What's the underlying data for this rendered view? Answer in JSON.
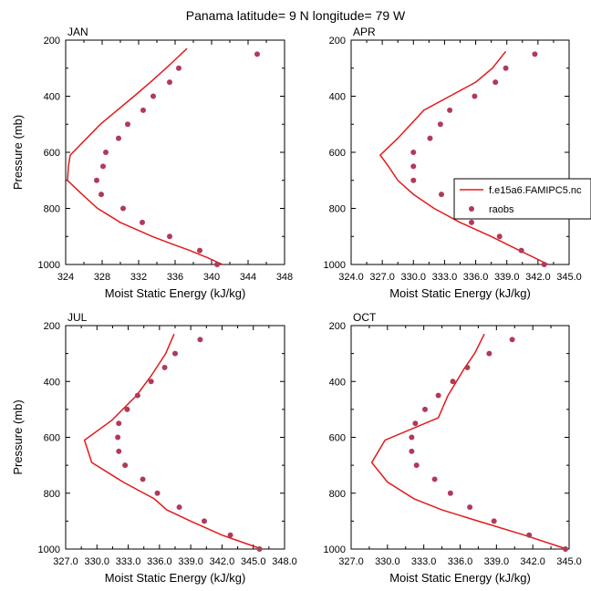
{
  "title": "Panama  latitude= 9 N longitude= 79 W",
  "colors": {
    "model": "#e31a1c",
    "obs": "#b03a5b",
    "axis": "#000000"
  },
  "legend": {
    "model_label": "f.e15a6.FAMIPC5.nc",
    "obs_label": "raobs"
  },
  "chart_data": [
    {
      "type": "line",
      "panel": "JAN",
      "title": "JAN",
      "xlabel": "Moist Static Energy (kJ/kg)",
      "ylabel": "Pressure (mb)",
      "xlim": [
        324,
        348
      ],
      "ylim": [
        1000,
        200
      ],
      "xticks": [
        324,
        328,
        332,
        336,
        340,
        344,
        348
      ],
      "xtick_labels": [
        "324",
        "328",
        "332",
        "336",
        "340",
        "344",
        "348"
      ],
      "yticks": [
        200,
        400,
        600,
        800,
        1000
      ],
      "ytick_labels": [
        "200",
        "400",
        "600",
        "800",
        "1000"
      ],
      "series": [
        {
          "name": "f.e15a6.FAMIPC5.nc",
          "style": "line",
          "pressure": [
            1000,
            975,
            950,
            925,
            900,
            850,
            800,
            750,
            700,
            650,
            610,
            500,
            400,
            350,
            300,
            270,
            230
          ],
          "mse": [
            341.2,
            339.5,
            337.6,
            335.5,
            333.5,
            330.0,
            327.5,
            325.8,
            324.2,
            324.3,
            324.5,
            327.8,
            331.5,
            333.3,
            335.0,
            336.0,
            337.3
          ]
        },
        {
          "name": "raobs",
          "style": "marker",
          "pressure": [
            1000,
            950,
            900,
            850,
            800,
            750,
            700,
            650,
            600,
            550,
            500,
            450,
            400,
            350,
            300,
            250
          ],
          "mse": [
            340.6,
            338.7,
            335.4,
            332.4,
            330.3,
            327.9,
            327.4,
            328.1,
            328.4,
            329.8,
            330.8,
            332.5,
            333.6,
            335.4,
            336.4,
            345.0
          ]
        }
      ]
    },
    {
      "type": "line",
      "panel": "APR",
      "title": "APR",
      "xlabel": "Moist Static Energy (kJ/kg)",
      "ylabel": "",
      "xlim": [
        324,
        345
      ],
      "ylim": [
        1000,
        200
      ],
      "xticks": [
        324,
        327,
        330,
        333,
        336,
        339,
        342,
        345
      ],
      "xtick_labels": [
        "324.0",
        "327.0",
        "330.0",
        "333.0",
        "336.0",
        "339.0",
        "342.0",
        "345.0"
      ],
      "yticks": [
        200,
        400,
        600,
        800,
        1000
      ],
      "ytick_labels": [
        "200",
        "400",
        "600",
        "800",
        "1000"
      ],
      "series": [
        {
          "name": "f.e15a6.FAMIPC5.nc",
          "style": "line",
          "pressure": [
            1000,
            950,
            900,
            850,
            800,
            750,
            700,
            650,
            610,
            550,
            450,
            400,
            350,
            300,
            240
          ],
          "mse": [
            343.0,
            340.2,
            337.5,
            334.5,
            332.0,
            330.0,
            328.5,
            327.6,
            326.8,
            328.5,
            331.0,
            333.5,
            336.0,
            337.6,
            338.9
          ]
        },
        {
          "name": "raobs",
          "style": "marker",
          "pressure": [
            1000,
            950,
            900,
            850,
            800,
            750,
            700,
            650,
            600,
            550,
            500,
            450,
            400,
            350,
            300,
            250
          ],
          "mse": [
            342.6,
            340.4,
            338.3,
            335.6,
            334.3,
            332.7,
            330.0,
            330.0,
            330.0,
            331.6,
            332.6,
            333.5,
            335.9,
            337.9,
            338.9,
            341.7
          ]
        }
      ]
    },
    {
      "type": "line",
      "panel": "JUL",
      "title": "JUL",
      "xlabel": "Moist Static Energy (kJ/kg)",
      "ylabel": "Pressure (mb)",
      "xlim": [
        327,
        348
      ],
      "ylim": [
        1000,
        200
      ],
      "xticks": [
        327,
        330,
        333,
        336,
        339,
        342,
        345,
        348
      ],
      "xtick_labels": [
        "327.0",
        "330.0",
        "333.0",
        "336.0",
        "339.0",
        "342.0",
        "345.0",
        "348.0"
      ],
      "yticks": [
        200,
        400,
        600,
        800,
        1000
      ],
      "ytick_labels": [
        "200",
        "400",
        "600",
        "800",
        "1000"
      ],
      "series": [
        {
          "name": "f.e15a6.FAMIPC5.nc",
          "style": "line",
          "pressure": [
            1000,
            950,
            900,
            860,
            820,
            760,
            690,
            610,
            540,
            450,
            380,
            300,
            230
          ],
          "mse": [
            345.8,
            342.0,
            339.0,
            336.7,
            335.5,
            332.5,
            329.5,
            328.8,
            331.4,
            333.8,
            335.2,
            336.6,
            337.4
          ]
        },
        {
          "name": "raobs",
          "style": "marker",
          "pressure": [
            1000,
            950,
            900,
            850,
            800,
            750,
            700,
            650,
            600,
            550,
            500,
            450,
            400,
            350,
            300,
            250
          ],
          "mse": [
            345.6,
            342.8,
            340.3,
            337.9,
            335.8,
            334.4,
            332.7,
            332.1,
            332.0,
            332.1,
            332.9,
            333.9,
            335.2,
            336.5,
            337.5,
            339.9
          ]
        }
      ]
    },
    {
      "type": "line",
      "panel": "OCT",
      "title": "OCT",
      "xlabel": "Moist Static Energy (kJ/kg)",
      "ylabel": "",
      "xlim": [
        327,
        345
      ],
      "ylim": [
        1000,
        200
      ],
      "xticks": [
        327,
        330,
        333,
        336,
        339,
        342,
        345
      ],
      "xtick_labels": [
        "327.0",
        "330.0",
        "333.0",
        "336.0",
        "339.0",
        "342.0",
        "345.0"
      ],
      "yticks": [
        200,
        400,
        600,
        800,
        1000
      ],
      "ytick_labels": [
        "200",
        "400",
        "600",
        "800",
        "1000"
      ],
      "series": [
        {
          "name": "f.e15a6.FAMIPC5.nc",
          "style": "line",
          "pressure": [
            1000,
            950,
            900,
            860,
            820,
            760,
            690,
            610,
            530,
            450,
            350,
            300,
            230
          ],
          "mse": [
            344.8,
            341.3,
            337.5,
            334.5,
            332.2,
            330.0,
            328.7,
            329.8,
            334.2,
            335.0,
            336.4,
            337.2,
            338.0
          ]
        },
        {
          "name": "raobs",
          "style": "marker",
          "pressure": [
            1000,
            950,
            900,
            850,
            800,
            750,
            700,
            650,
            600,
            550,
            500,
            450,
            400,
            350,
            300,
            250
          ],
          "mse": [
            344.7,
            341.7,
            338.8,
            336.8,
            335.2,
            333.9,
            332.4,
            332.0,
            332.0,
            332.3,
            333.1,
            334.2,
            335.4,
            336.6,
            338.4,
            340.3
          ]
        }
      ]
    }
  ]
}
